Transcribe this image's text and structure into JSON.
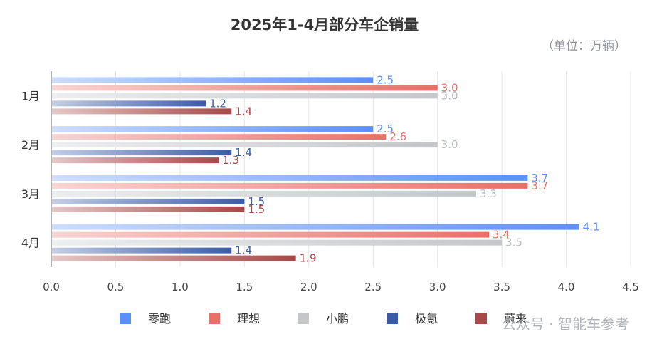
{
  "chart_data": {
    "type": "bar",
    "orientation": "horizontal",
    "title": "2025年1-4月部分车企销量",
    "unit_note": "（单位：万辆）",
    "categories": [
      "1月",
      "2月",
      "3月",
      "4月"
    ],
    "xlim": [
      0,
      4.5
    ],
    "x_ticks": [
      "0.0",
      "0.5",
      "1.0",
      "1.5",
      "2.0",
      "2.5",
      "3.0",
      "3.5",
      "4.0",
      "4.5"
    ],
    "grid": "vertical",
    "legend_position": "bottom",
    "series": [
      {
        "name": "零跑",
        "color": "#5b8ff9",
        "label_color": "#5b8ff9",
        "values": [
          2.5,
          2.5,
          3.7,
          4.1
        ]
      },
      {
        "name": "理想",
        "color": "#e8706a",
        "label_color": "#e8706a",
        "values": [
          3.0,
          2.6,
          3.7,
          3.4
        ]
      },
      {
        "name": "小鹏",
        "color": "#c4c6ca",
        "label_color": "#b9bcc1",
        "values": [
          3.0,
          3.0,
          3.3,
          3.5
        ]
      },
      {
        "name": "极氪",
        "color": "#3b5ba8",
        "label_color": "#3b5ba8",
        "values": [
          1.2,
          1.4,
          1.5,
          1.4
        ]
      },
      {
        "name": "蔚来",
        "color": "#a84848",
        "label_color": "#a84848",
        "values": [
          1.4,
          1.3,
          1.5,
          1.9
        ]
      }
    ]
  },
  "watermark": "公众号 · 智能车参考"
}
